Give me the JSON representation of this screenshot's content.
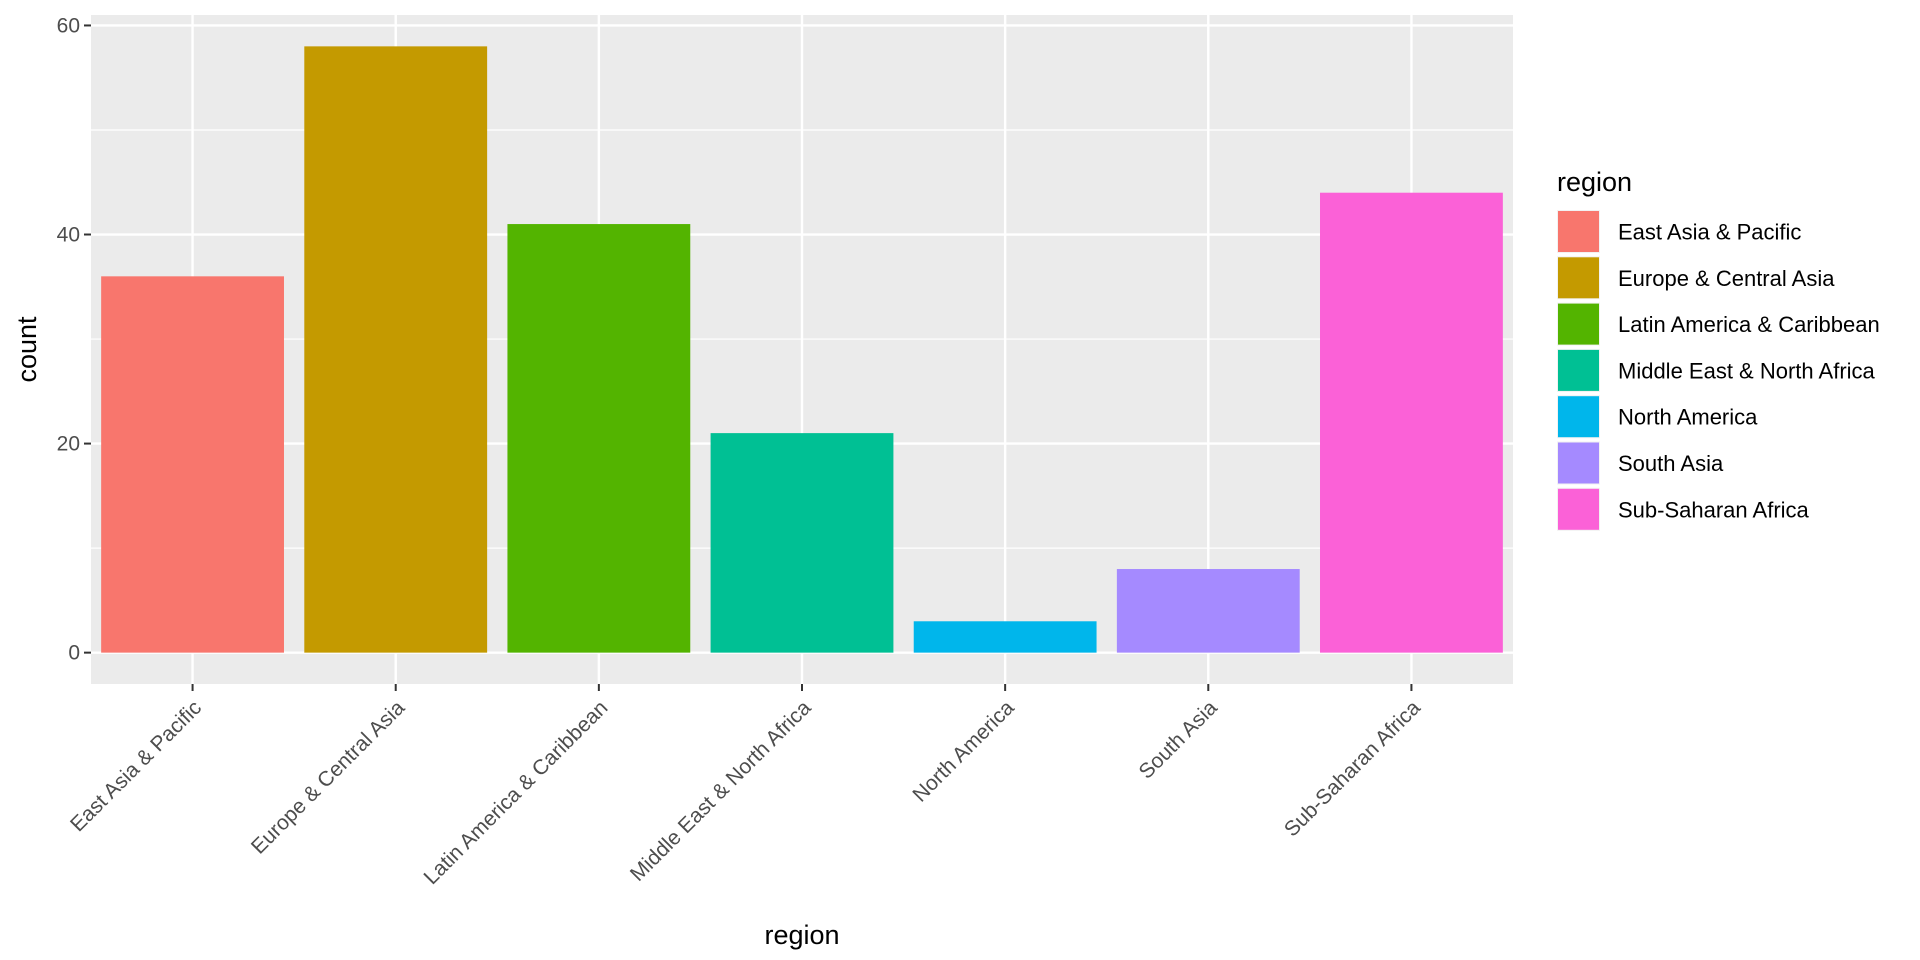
{
  "chart_data": {
    "type": "bar",
    "title": "",
    "xlabel": "region",
    "ylabel": "count",
    "ylim": [
      -3.0,
      61.0
    ],
    "yticks": [
      0,
      20,
      40,
      60
    ],
    "grid": true,
    "legend": {
      "title": "region",
      "placement": "right"
    },
    "categories": [
      "East Asia & Pacific",
      "Europe & Central Asia",
      "Latin America & Caribbean",
      "Middle East & North Africa",
      "North America",
      "South Asia",
      "Sub-Saharan Africa"
    ],
    "values": [
      36,
      58,
      41,
      21,
      3,
      8,
      44
    ],
    "colors": [
      "#F8766D",
      "#C49A00",
      "#53B400",
      "#00C094",
      "#00B6EB",
      "#A58AFF",
      "#FB61D7"
    ],
    "panel_background": "#EBEBEB",
    "grid_color": "#FFFFFF"
  }
}
